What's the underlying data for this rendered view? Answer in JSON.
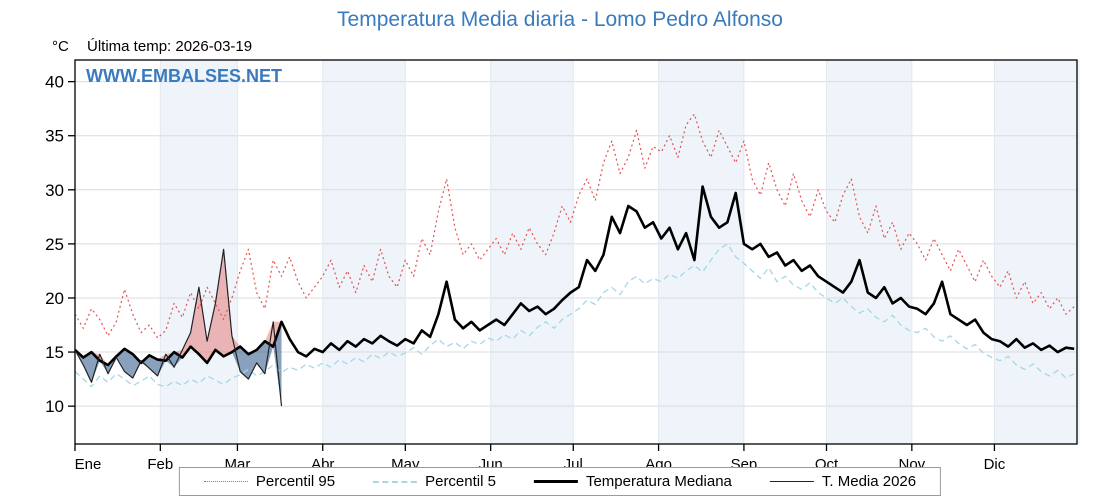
{
  "title": "Temperatura Media diaria - Lomo Pedro Alfonso",
  "subtitle": {
    "units": "°C",
    "last_temp": "Última temp: 2026-03-19"
  },
  "watermark": "WWW.EMBALSES.NET",
  "colors": {
    "title_blue": "#3a7bbd",
    "percentil95_red": "#e25252",
    "percentil5_blue": "#a6d7e8",
    "median_black": "#000000",
    "media2026_black": "#222222",
    "fill_above": "rgba(228,100,100,0.45)",
    "fill_below": "rgba(74,111,152,0.65)",
    "band_tint": "#eef4f9",
    "grid_gray": "#dcdcdc"
  },
  "chart_data": {
    "type": "line",
    "title": "Temperatura Media diaria - Lomo Pedro Alfonso",
    "xlabel": "",
    "ylabel": "°C",
    "ylim": [
      6.5,
      42
    ],
    "yticks": [
      10,
      15,
      20,
      25,
      30,
      35,
      40
    ],
    "grid": true,
    "legend_position": "bottom",
    "x_unit": "day_of_year",
    "x_start": 1,
    "x_step": 3,
    "x_max": 365,
    "month_labels": [
      "Ene",
      "Feb",
      "Mar",
      "Abr",
      "May",
      "Jun",
      "Jul",
      "Ago",
      "Sep",
      "Oct",
      "Nov",
      "Dic"
    ],
    "month_start_days": [
      1,
      32,
      60,
      91,
      121,
      152,
      182,
      213,
      244,
      274,
      305,
      335
    ],
    "series": [
      {
        "name": "Percentil 95",
        "style": "dotted",
        "color": "#e25252",
        "values": [
          18.5,
          17.2,
          19.0,
          18.0,
          16.5,
          17.8,
          20.8,
          18.5,
          16.8,
          17.5,
          16.3,
          17.0,
          19.5,
          18.2,
          20.5,
          19.0,
          21.0,
          19.5,
          18.0,
          20.0,
          22.5,
          24.5,
          20.5,
          19.0,
          23.5,
          22.0,
          23.8,
          21.5,
          20.0,
          21.0,
          22.0,
          23.5,
          21.0,
          22.5,
          20.5,
          23.0,
          21.5,
          24.5,
          22.0,
          21.0,
          23.5,
          22.0,
          25.5,
          24.0,
          28.0,
          31.0,
          26.5,
          24.0,
          25.0,
          23.5,
          24.5,
          25.5,
          24.0,
          26.0,
          24.5,
          26.5,
          25.0,
          24.0,
          26.0,
          28.5,
          27.0,
          29.5,
          31.0,
          29.0,
          32.5,
          34.5,
          31.5,
          33.0,
          35.5,
          32.0,
          34.0,
          33.5,
          35.0,
          33.0,
          36.0,
          37.0,
          34.5,
          33.0,
          35.5,
          34.0,
          32.5,
          34.5,
          31.0,
          29.5,
          32.5,
          30.0,
          28.5,
          31.5,
          29.0,
          27.5,
          30.0,
          28.0,
          27.0,
          29.5,
          31.0,
          27.5,
          26.0,
          28.5,
          25.5,
          27.0,
          24.5,
          26.0,
          25.0,
          23.5,
          25.5,
          24.0,
          22.5,
          24.5,
          23.0,
          21.5,
          23.5,
          22.0,
          21.0,
          22.5,
          20.0,
          21.5,
          19.5,
          20.5,
          19.0,
          20.0,
          18.5,
          19.2
        ]
      },
      {
        "name": "Percentil 5",
        "style": "dashed",
        "color": "#a6d7e8",
        "values": [
          13.2,
          12.5,
          11.8,
          12.8,
          12.2,
          13.0,
          12.5,
          11.9,
          12.3,
          12.8,
          12.0,
          11.8,
          12.3,
          11.9,
          12.5,
          12.1,
          12.8,
          12.4,
          12.0,
          12.6,
          12.9,
          13.4,
          12.8,
          13.2,
          13.8,
          13.1,
          13.6,
          13.3,
          13.9,
          13.5,
          14.0,
          13.6,
          14.3,
          13.9,
          14.5,
          14.1,
          14.8,
          14.4,
          15.0,
          14.6,
          14.9,
          15.4,
          14.8,
          15.6,
          16.2,
          15.5,
          15.9,
          15.3,
          16.0,
          15.7,
          16.3,
          16.0,
          16.6,
          16.2,
          17.0,
          16.5,
          17.3,
          17.8,
          17.2,
          18.0,
          18.5,
          19.0,
          19.8,
          19.4,
          20.5,
          21.0,
          20.3,
          21.5,
          22.0,
          21.3,
          21.8,
          21.5,
          22.2,
          21.8,
          22.5,
          23.0,
          22.4,
          23.5,
          24.5,
          25.0,
          23.8,
          23.2,
          22.5,
          21.8,
          22.8,
          21.5,
          22.0,
          21.2,
          20.8,
          21.4,
          20.5,
          20.0,
          19.5,
          20.0,
          19.2,
          18.6,
          19.0,
          18.2,
          17.8,
          18.4,
          17.5,
          17.0,
          16.8,
          17.2,
          16.4,
          16.0,
          16.5,
          15.8,
          15.3,
          15.7,
          14.9,
          14.5,
          14.2,
          14.6,
          13.8,
          13.4,
          13.9,
          13.2,
          12.8,
          13.3,
          12.6,
          13.0
        ]
      },
      {
        "name": "Temperatura Mediana",
        "style": "solid-thick",
        "color": "#000000",
        "values": [
          15.2,
          14.5,
          15.0,
          14.2,
          13.8,
          14.6,
          15.3,
          14.8,
          14.0,
          14.7,
          14.3,
          14.2,
          15.0,
          14.5,
          15.5,
          14.8,
          14.0,
          15.2,
          14.6,
          15.0,
          15.5,
          14.8,
          15.2,
          16.0,
          15.5,
          17.8,
          16.2,
          15.0,
          14.6,
          15.3,
          15.0,
          15.8,
          15.2,
          16.0,
          15.5,
          16.2,
          15.8,
          16.5,
          16.0,
          15.6,
          16.2,
          15.8,
          17.0,
          16.4,
          18.5,
          21.5,
          18.0,
          17.2,
          17.8,
          17.0,
          17.5,
          18.0,
          17.5,
          18.5,
          19.5,
          18.8,
          19.2,
          18.5,
          19.0,
          19.8,
          20.5,
          21.0,
          23.5,
          22.5,
          24.0,
          27.5,
          26.0,
          28.5,
          28.0,
          26.5,
          27.0,
          25.5,
          26.5,
          24.5,
          26.0,
          23.5,
          30.3,
          27.5,
          26.5,
          27.0,
          29.7,
          25.0,
          24.5,
          25.0,
          23.8,
          24.2,
          23.0,
          23.5,
          22.5,
          23.0,
          22.0,
          21.5,
          21.0,
          20.5,
          21.5,
          23.5,
          20.5,
          20.0,
          21.0,
          19.5,
          20.0,
          19.2,
          19.0,
          18.5,
          19.5,
          21.5,
          18.5,
          18.0,
          17.5,
          18.0,
          16.8,
          16.2,
          16.0,
          15.5,
          16.2,
          15.4,
          15.8,
          15.2,
          15.6,
          15.0,
          15.4,
          15.3
        ]
      },
      {
        "name": "T. Media 2026",
        "style": "solid-thin",
        "color": "#222222",
        "values": [
          15.2,
          13.8,
          12.2,
          14.8,
          13.0,
          14.5,
          13.2,
          12.6,
          14.2,
          13.5,
          12.8,
          14.8,
          13.6,
          15.2,
          16.8,
          21.0,
          16.0,
          19.5,
          24.5,
          16.5,
          13.2,
          12.5,
          14.0,
          13.0,
          17.8,
          10.0
        ]
      }
    ],
    "fills": {
      "between": [
        "T. Media 2026",
        "Temperatura Mediana"
      ],
      "above_color": "rgba(228,100,100,0.45)",
      "below_color": "rgba(74,111,152,0.65)"
    }
  }
}
